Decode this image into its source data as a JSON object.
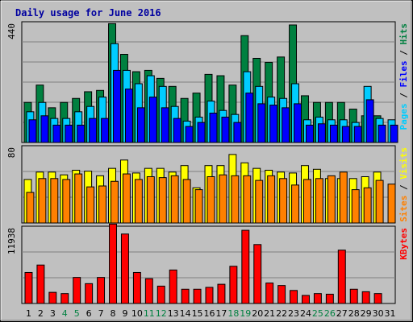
{
  "chart_data": {
    "title": "Daily usage for June 2016",
    "type": "bar",
    "days": [
      "1",
      "2",
      "3",
      "4",
      "5",
      "6",
      "7",
      "8",
      "9",
      "10",
      "11",
      "12",
      "13",
      "14",
      "15",
      "16",
      "17",
      "18",
      "19",
      "20",
      "21",
      "22",
      "23",
      "24",
      "25",
      "26",
      "27",
      "28",
      "29",
      "30",
      "31"
    ],
    "weekend_days": [
      "4",
      "5",
      "11",
      "12",
      "18",
      "19",
      "25",
      "26"
    ],
    "panels": [
      {
        "name": "pages-files-hits",
        "ymax_label": "440",
        "ymax": 440,
        "legend": [
          {
            "text": "Pages",
            "color": "#00ccff"
          },
          {
            "text": "Files",
            "color": "#0000ff"
          },
          {
            "text": "Hits",
            "color": "#008040"
          }
        ],
        "series": [
          {
            "name": "Hits",
            "color": "#008040",
            "values": [
              150,
              215,
              130,
              150,
              165,
              190,
              195,
              445,
              330,
              265,
              270,
              240,
              210,
              165,
              185,
              255,
              250,
              215,
              400,
              315,
              300,
              320,
              440,
              175,
              150,
              150,
              150,
              125,
              100,
              100,
              0
            ]
          },
          {
            "name": "Files",
            "color": "#00ccff",
            "values": [
              115,
              150,
              90,
              90,
              115,
              135,
              170,
              370,
              270,
              220,
              250,
              210,
              135,
              80,
              95,
              155,
              120,
              105,
              265,
              210,
              170,
              165,
              220,
              85,
              95,
              85,
              85,
              75,
              210,
              90,
              85
            ]
          },
          {
            "name": "Pages",
            "color": "#0000ff",
            "values": [
              85,
              100,
              65,
              65,
              65,
              90,
              90,
              270,
              200,
              130,
              170,
              130,
              90,
              60,
              75,
              110,
              95,
              75,
              185,
              145,
              140,
              130,
              145,
              65,
              70,
              65,
              60,
              60,
              160,
              65,
              65
            ]
          }
        ]
      },
      {
        "name": "visits-sites",
        "ymax_label": "80",
        "ymax": 80,
        "legend": [
          {
            "text": "Sites",
            "color": "#ff8000"
          },
          {
            "text": "Visits",
            "color": "#ffff00"
          }
        ],
        "series": [
          {
            "name": "Visits",
            "color": "#ffff00",
            "values": [
              47,
              55,
              55,
              52,
              57,
              56,
              51,
              59,
              68,
              54,
              59,
              59,
              55,
              62,
              38,
              62,
              62,
              74,
              65,
              59,
              57,
              55,
              54,
              62,
              58,
              48,
              48,
              48,
              50,
              55,
              0
            ]
          },
          {
            "name": "Sites",
            "color": "#ff8000",
            "values": [
              33,
              48,
              48,
              47,
              53,
              39,
              40,
              45,
              53,
              47,
              50,
              49,
              51,
              47,
              36,
              50,
              52,
              51,
              51,
              46,
              51,
              48,
              41,
              47,
              48,
              51,
              55,
              36,
              38,
              46,
              42
            ]
          }
        ]
      },
      {
        "name": "kbytes",
        "ymax_label": "11938",
        "ymax": 11938,
        "legend": [
          {
            "text": "KBytes",
            "color": "#ff0000"
          }
        ],
        "series": [
          {
            "name": "KBytes",
            "color": "#ff0000",
            "values": [
              5000,
              6200,
              1800,
              1600,
              4200,
              3200,
              4200,
              12800,
              11200,
              5000,
              4000,
              2800,
              5400,
              2300,
              2300,
              2600,
              3100,
              6000,
              11800,
              9500,
              3300,
              2900,
              2100,
              1300,
              1600,
              1500,
              8600,
              2300,
              1900,
              1600,
              0
            ]
          }
        ]
      }
    ]
  }
}
